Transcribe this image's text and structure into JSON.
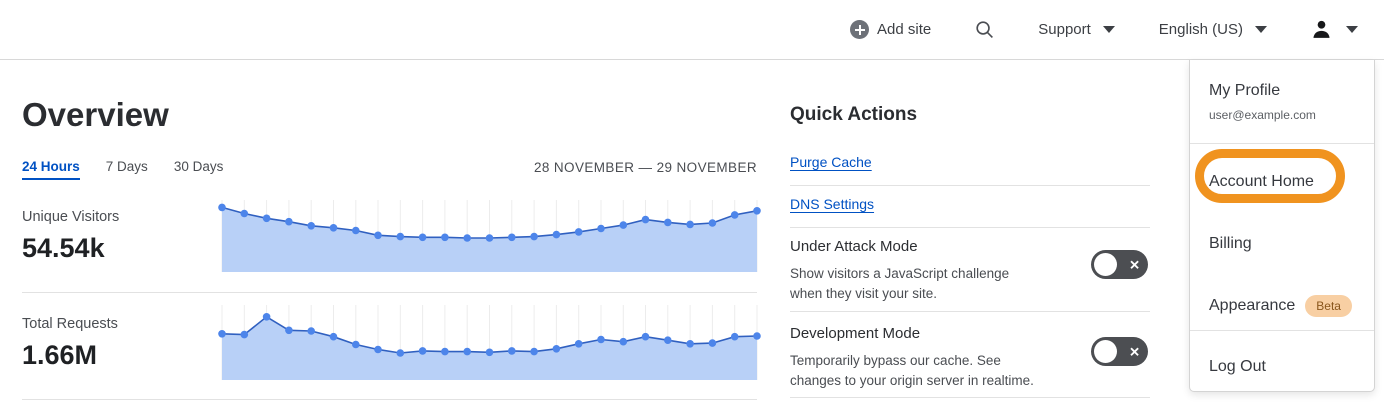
{
  "header": {
    "add_site_label": "Add site",
    "support_label": "Support",
    "language_label": "English (US)"
  },
  "overview": {
    "title": "Overview",
    "tabs": [
      {
        "label": "24 Hours",
        "active": true
      },
      {
        "label": "7 Days",
        "active": false
      },
      {
        "label": "30 Days",
        "active": false
      }
    ],
    "date_range": "28 NOVEMBER — 29 NOVEMBER",
    "metrics": [
      {
        "label": "Unique Visitors",
        "value": "54.54k"
      },
      {
        "label": "Total Requests",
        "value": "1.66M"
      }
    ]
  },
  "chart_data": [
    {
      "type": "area",
      "title": "Unique Visitors — 24 Hours",
      "xlabel": "",
      "ylabel": "",
      "x": [
        0,
        1,
        2,
        3,
        4,
        5,
        6,
        7,
        8,
        9,
        10,
        11,
        12,
        13,
        14,
        15,
        16,
        17,
        18,
        19,
        20,
        21,
        22,
        23,
        24
      ],
      "series": [
        {
          "name": "Unique Visitors",
          "values": [
            0.95,
            0.86,
            0.79,
            0.74,
            0.68,
            0.65,
            0.61,
            0.54,
            0.52,
            0.51,
            0.51,
            0.5,
            0.5,
            0.51,
            0.52,
            0.55,
            0.59,
            0.64,
            0.69,
            0.77,
            0.73,
            0.7,
            0.72,
            0.84,
            0.9
          ]
        }
      ],
      "total_label": "54.54k",
      "ylim": [
        0,
        1
      ],
      "grid": "vertical-only",
      "legend": "none",
      "note": "no axis labels shown; values are relative heights 0-1"
    },
    {
      "type": "area",
      "title": "Total Requests — 24 Hours",
      "xlabel": "",
      "ylabel": "",
      "x": [
        0,
        1,
        2,
        3,
        4,
        5,
        6,
        7,
        8,
        9,
        10,
        11,
        12,
        13,
        14,
        15,
        16,
        17,
        18,
        19,
        20,
        21,
        22,
        23,
        24
      ],
      "series": [
        {
          "name": "Total Requests",
          "values": [
            0.65,
            0.64,
            0.89,
            0.7,
            0.69,
            0.61,
            0.5,
            0.43,
            0.38,
            0.41,
            0.4,
            0.4,
            0.39,
            0.41,
            0.4,
            0.44,
            0.51,
            0.57,
            0.54,
            0.61,
            0.56,
            0.51,
            0.52,
            0.61,
            0.62
          ]
        }
      ],
      "total_label": "1.66M",
      "ylim": [
        0,
        1
      ],
      "grid": "vertical-only",
      "legend": "none",
      "note": "no axis labels shown; values are relative heights 0-1"
    }
  ],
  "quick_actions": {
    "title": "Quick Actions",
    "links": [
      {
        "label": "Purge Cache"
      },
      {
        "label": "DNS Settings"
      }
    ],
    "toggles": [
      {
        "title": "Under Attack Mode",
        "description": "Show visitors a JavaScript challenge when they visit your site.",
        "state": "off",
        "off_glyph": "✕"
      },
      {
        "title": "Development Mode",
        "description": "Temporarily bypass our cache. See changes to your origin server in realtime.",
        "state": "off",
        "off_glyph": "✕"
      }
    ]
  },
  "user_menu": {
    "profile_name": "My Profile",
    "profile_email": "user@example.com",
    "items": [
      {
        "label": "Account Home",
        "highlighted": true
      },
      {
        "label": "Billing"
      },
      {
        "label": "Appearance",
        "badge": "Beta"
      },
      {
        "label": "Log Out"
      }
    ],
    "beta_badge": "Beta"
  },
  "colors": {
    "accent_blue": "#0051c3",
    "chart_fill": "#b8d0f7",
    "chart_line": "#3060c0",
    "chart_dot": "#4d85ea",
    "chart_grid": "#ececec",
    "toggle_bg": "#4c4e52",
    "highlight_orange": "#f0931f",
    "beta_badge_bg": "#f8cfa3",
    "beta_badge_text": "#8a561c"
  }
}
